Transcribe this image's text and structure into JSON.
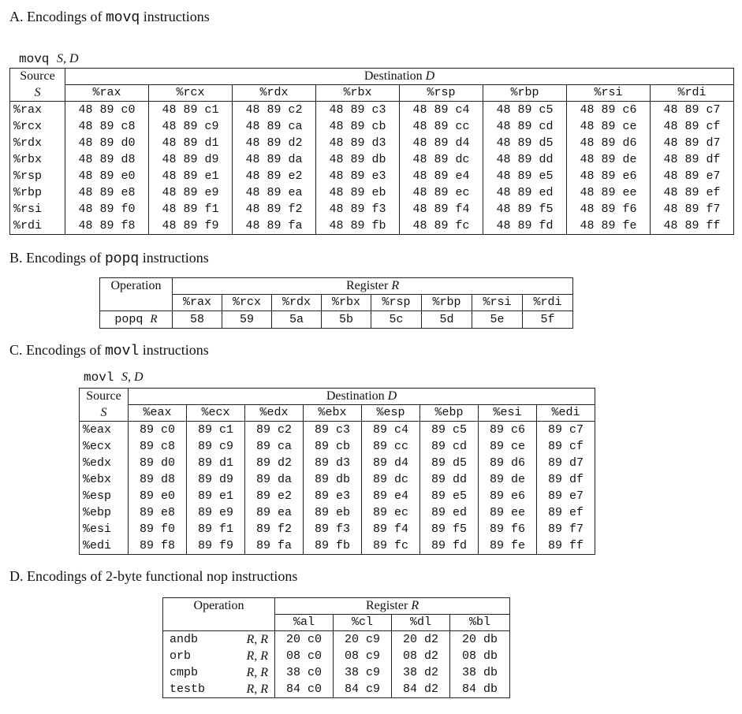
{
  "section_a": {
    "heading_prefix": "A. Encodings of ",
    "heading_code": "movq",
    "heading_suffix": " instructions",
    "caption_code": "movq",
    "caption_args": "S, D",
    "source_label": "Source",
    "source_var": "S",
    "dest_label": "Destination ",
    "dest_var": "D",
    "columns": [
      "%rax",
      "%rcx",
      "%rdx",
      "%rbx",
      "%rsp",
      "%rbp",
      "%rsi",
      "%rdi"
    ],
    "rows": [
      {
        "reg": "%rax",
        "cells": [
          "48 89 c0",
          "48 89 c1",
          "48 89 c2",
          "48 89 c3",
          "48 89 c4",
          "48 89 c5",
          "48 89 c6",
          "48 89 c7"
        ]
      },
      {
        "reg": "%rcx",
        "cells": [
          "48 89 c8",
          "48 89 c9",
          "48 89 ca",
          "48 89 cb",
          "48 89 cc",
          "48 89 cd",
          "48 89 ce",
          "48 89 cf"
        ]
      },
      {
        "reg": "%rdx",
        "cells": [
          "48 89 d0",
          "48 89 d1",
          "48 89 d2",
          "48 89 d3",
          "48 89 d4",
          "48 89 d5",
          "48 89 d6",
          "48 89 d7"
        ]
      },
      {
        "reg": "%rbx",
        "cells": [
          "48 89 d8",
          "48 89 d9",
          "48 89 da",
          "48 89 db",
          "48 89 dc",
          "48 89 dd",
          "48 89 de",
          "48 89 df"
        ]
      },
      {
        "reg": "%rsp",
        "cells": [
          "48 89 e0",
          "48 89 e1",
          "48 89 e2",
          "48 89 e3",
          "48 89 e4",
          "48 89 e5",
          "48 89 e6",
          "48 89 e7"
        ]
      },
      {
        "reg": "%rbp",
        "cells": [
          "48 89 e8",
          "48 89 e9",
          "48 89 ea",
          "48 89 eb",
          "48 89 ec",
          "48 89 ed",
          "48 89 ee",
          "48 89 ef"
        ]
      },
      {
        "reg": "%rsi",
        "cells": [
          "48 89 f0",
          "48 89 f1",
          "48 89 f2",
          "48 89 f3",
          "48 89 f4",
          "48 89 f5",
          "48 89 f6",
          "48 89 f7"
        ]
      },
      {
        "reg": "%rdi",
        "cells": [
          "48 89 f8",
          "48 89 f9",
          "48 89 fa",
          "48 89 fb",
          "48 89 fc",
          "48 89 fd",
          "48 89 fe",
          "48 89 ff"
        ]
      }
    ]
  },
  "section_b": {
    "heading_prefix": "B. Encodings of ",
    "heading_code": "popq",
    "heading_suffix": " instructions",
    "operation_label": "Operation",
    "register_label": "Register ",
    "register_var": "R",
    "columns": [
      "%rax",
      "%rcx",
      "%rdx",
      "%rbx",
      "%rsp",
      "%rbp",
      "%rsi",
      "%rdi"
    ],
    "op_code": "popq",
    "op_var": "R",
    "cells": [
      "58",
      "59",
      "5a",
      "5b",
      "5c",
      "5d",
      "5e",
      "5f"
    ]
  },
  "section_c": {
    "heading_prefix": "C. Encodings of ",
    "heading_code": "movl",
    "heading_suffix": " instructions",
    "caption_code": "movl",
    "caption_args": "S, D",
    "source_label": "Source",
    "source_var": "S",
    "dest_label": "Destination ",
    "dest_var": "D",
    "columns": [
      "%eax",
      "%ecx",
      "%edx",
      "%ebx",
      "%esp",
      "%ebp",
      "%esi",
      "%edi"
    ],
    "rows": [
      {
        "reg": "%eax",
        "cells": [
          "89 c0",
          "89 c1",
          "89 c2",
          "89 c3",
          "89 c4",
          "89 c5",
          "89 c6",
          "89 c7"
        ]
      },
      {
        "reg": "%ecx",
        "cells": [
          "89 c8",
          "89 c9",
          "89 ca",
          "89 cb",
          "89 cc",
          "89 cd",
          "89 ce",
          "89 cf"
        ]
      },
      {
        "reg": "%edx",
        "cells": [
          "89 d0",
          "89 d1",
          "89 d2",
          "89 d3",
          "89 d4",
          "89 d5",
          "89 d6",
          "89 d7"
        ]
      },
      {
        "reg": "%ebx",
        "cells": [
          "89 d8",
          "89 d9",
          "89 da",
          "89 db",
          "89 dc",
          "89 dd",
          "89 de",
          "89 df"
        ]
      },
      {
        "reg": "%esp",
        "cells": [
          "89 e0",
          "89 e1",
          "89 e2",
          "89 e3",
          "89 e4",
          "89 e5",
          "89 e6",
          "89 e7"
        ]
      },
      {
        "reg": "%ebp",
        "cells": [
          "89 e8",
          "89 e9",
          "89 ea",
          "89 eb",
          "89 ec",
          "89 ed",
          "89 ee",
          "89 ef"
        ]
      },
      {
        "reg": "%esi",
        "cells": [
          "89 f0",
          "89 f1",
          "89 f2",
          "89 f3",
          "89 f4",
          "89 f5",
          "89 f6",
          "89 f7"
        ]
      },
      {
        "reg": "%edi",
        "cells": [
          "89 f8",
          "89 f9",
          "89 fa",
          "89 fb",
          "89 fc",
          "89 fd",
          "89 fe",
          "89 ff"
        ]
      }
    ]
  },
  "section_d": {
    "heading": "D. Encodings of 2-byte functional nop instructions",
    "operation_label": "Operation",
    "register_label": "Register ",
    "register_var": "R",
    "columns": [
      "%al",
      "%cl",
      "%dl",
      "%bl"
    ],
    "rows": [
      {
        "op": "andb",
        "args": "R, R",
        "cells": [
          "20 c0",
          "20 c9",
          "20 d2",
          "20 db"
        ]
      },
      {
        "op": "orb",
        "args": "R, R",
        "cells": [
          "08 c0",
          "08 c9",
          "08 d2",
          "08 db"
        ]
      },
      {
        "op": "cmpb",
        "args": "R, R",
        "cells": [
          "38 c0",
          "38 c9",
          "38 d2",
          "38 db"
        ]
      },
      {
        "op": "testb",
        "args": "R, R",
        "cells": [
          "84 c0",
          "84 c9",
          "84 d2",
          "84 db"
        ]
      }
    ]
  }
}
